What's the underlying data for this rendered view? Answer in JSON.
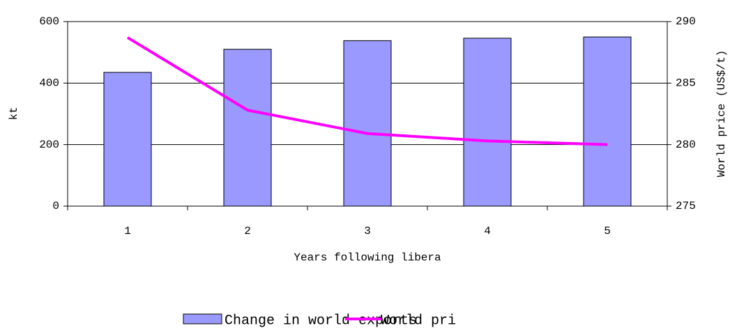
{
  "chart_data": {
    "type": "bar_line",
    "categories": [
      "1",
      "2",
      "3",
      "4",
      "5"
    ],
    "x_label": "Years following libera",
    "y_label": "kt",
    "y2_label": "World price (US$/t)",
    "series": [
      {
        "name": "Change in world exports",
        "color": "#9999ff",
        "values": [
          435,
          510,
          538,
          546,
          550
        ]
      },
      {
        "name": "World pri",
        "color": "#ff00ff",
        "axis": "y2",
        "values": [
          288.7,
          282.8,
          280.9,
          280.3,
          280.0
        ]
      }
    ],
    "ylim": [
      0,
      600
    ],
    "yticks": [
      0,
      200,
      400,
      600
    ],
    "y2lim": [
      275,
      290
    ],
    "y2ticks": [
      275,
      280,
      285,
      290
    ],
    "grid": true,
    "legend": "bottom"
  }
}
